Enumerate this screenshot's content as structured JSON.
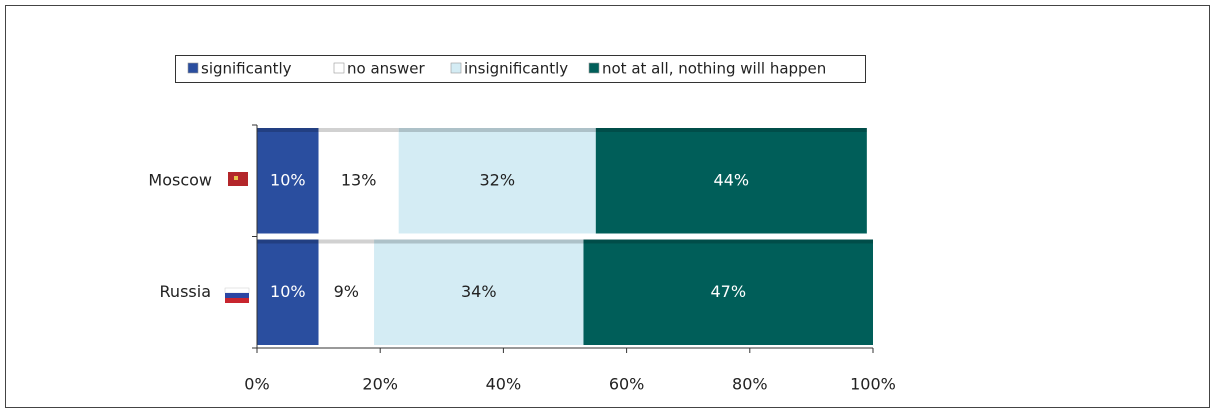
{
  "chart_data": {
    "type": "bar",
    "orientation": "horizontal",
    "stacked": true,
    "categories": [
      "Moscow",
      "Russia"
    ],
    "series": [
      {
        "name": "significantly",
        "color": "#2a4e9f",
        "values": [
          10,
          10
        ],
        "value_labels": [
          "10%",
          "10%"
        ]
      },
      {
        "name": "no answer",
        "color": "#ffffff",
        "values": [
          13,
          9
        ],
        "value_labels": [
          "13%",
          "9%"
        ]
      },
      {
        "name": "insignificantly",
        "color": "#d4ecf4",
        "values": [
          32,
          34
        ],
        "value_labels": [
          "32%",
          "34%"
        ]
      },
      {
        "name": "not at all, nothing will happen",
        "color": "#005e59",
        "values": [
          44,
          47
        ],
        "value_labels": [
          "44%",
          "47%"
        ]
      }
    ],
    "xlim": [
      0,
      100
    ],
    "xticks": [
      {
        "value": 0,
        "label": "0%"
      },
      {
        "value": 20,
        "label": "20%"
      },
      {
        "value": 40,
        "label": "40%"
      },
      {
        "value": 60,
        "label": "60%"
      },
      {
        "value": 80,
        "label": "80%"
      },
      {
        "value": 100,
        "label": "100%"
      }
    ],
    "legend": "top"
  }
}
